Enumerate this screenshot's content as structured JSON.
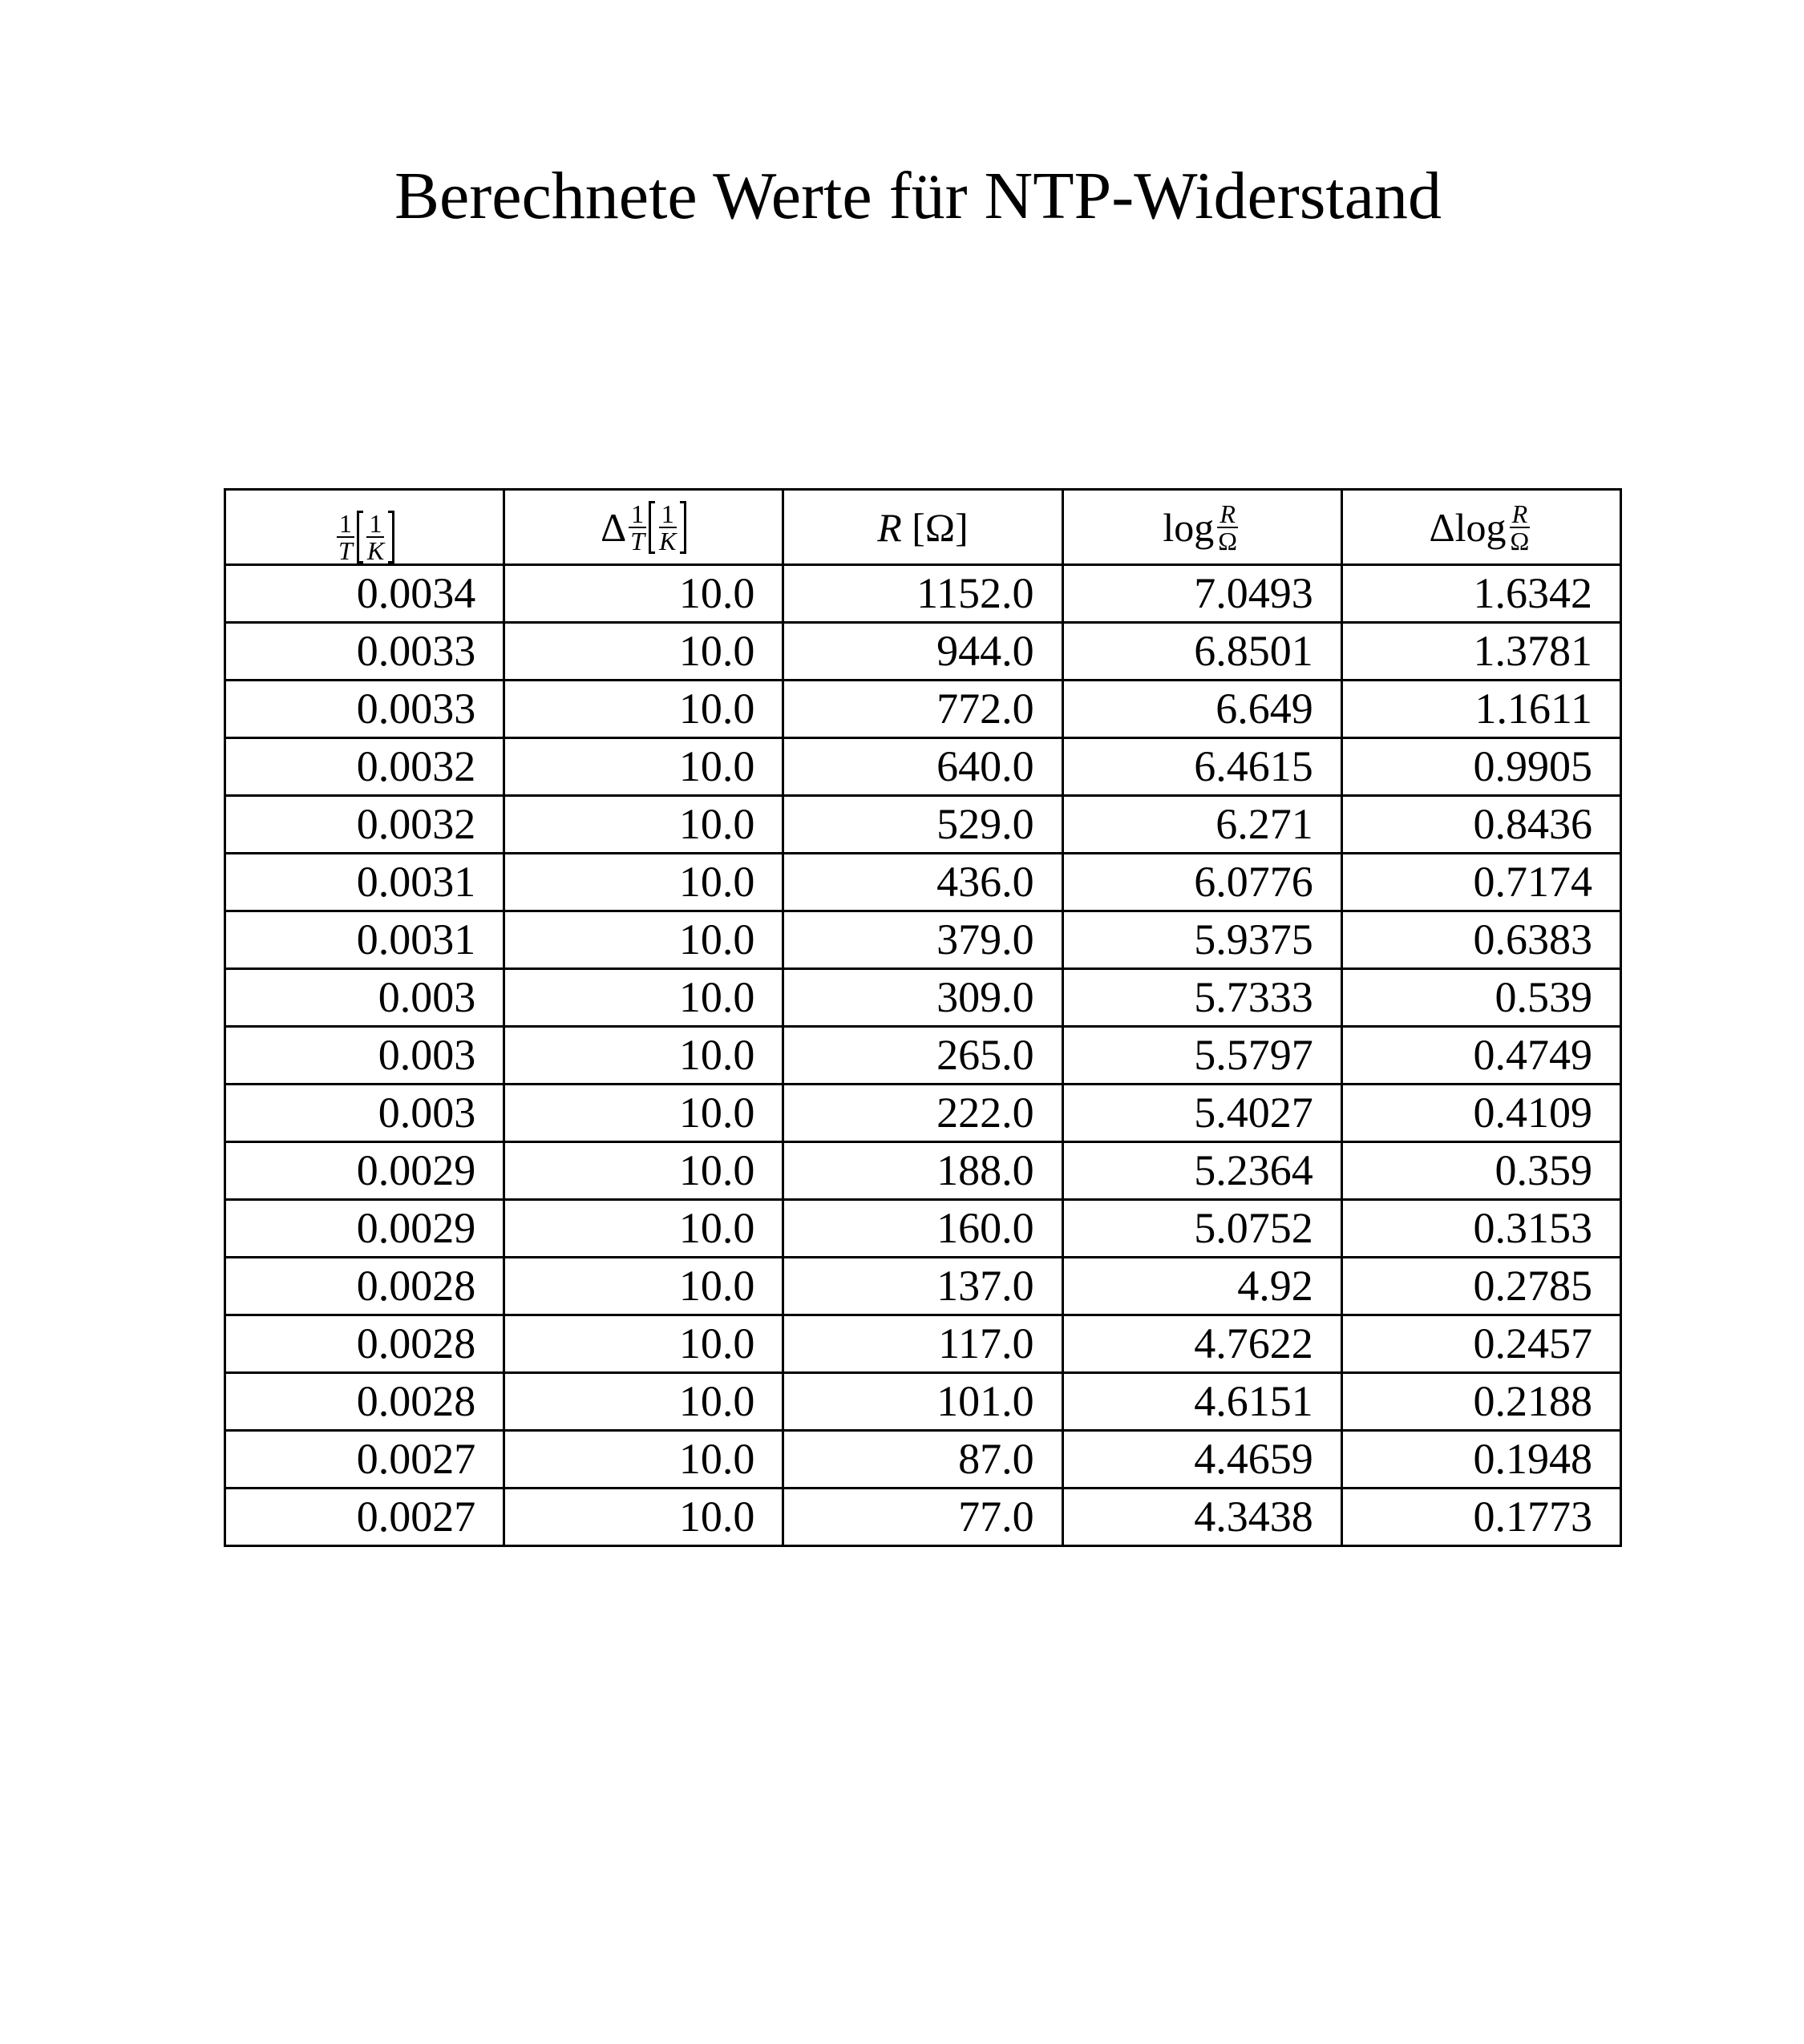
{
  "title": "Berechnete Werte für NTP-Widerstand",
  "table": {
    "headers": [
      {
        "prefix": "",
        "frac_num": "1",
        "frac_den": "T",
        "unit_num": "1",
        "unit_den": "K"
      },
      {
        "prefix": "Δ",
        "frac_num": "1",
        "frac_den": "T",
        "unit_num": "1",
        "unit_den": "K"
      },
      {
        "var": "R",
        "unit": "[Ω]"
      },
      {
        "prefix": "log",
        "frac_num": "R",
        "frac_den": "Ω"
      },
      {
        "prefix": "Δlog",
        "frac_num": "R",
        "frac_den": "Ω"
      }
    ],
    "rows": [
      [
        "0.0034",
        "10.0",
        "1152.0",
        "7.0493",
        "1.6342"
      ],
      [
        "0.0033",
        "10.0",
        "944.0",
        "6.8501",
        "1.3781"
      ],
      [
        "0.0033",
        "10.0",
        "772.0",
        "6.649",
        "1.1611"
      ],
      [
        "0.0032",
        "10.0",
        "640.0",
        "6.4615",
        "0.9905"
      ],
      [
        "0.0032",
        "10.0",
        "529.0",
        "6.271",
        "0.8436"
      ],
      [
        "0.0031",
        "10.0",
        "436.0",
        "6.0776",
        "0.7174"
      ],
      [
        "0.0031",
        "10.0",
        "379.0",
        "5.9375",
        "0.6383"
      ],
      [
        "0.003",
        "10.0",
        "309.0",
        "5.7333",
        "0.539"
      ],
      [
        "0.003",
        "10.0",
        "265.0",
        "5.5797",
        "0.4749"
      ],
      [
        "0.003",
        "10.0",
        "222.0",
        "5.4027",
        "0.4109"
      ],
      [
        "0.0029",
        "10.0",
        "188.0",
        "5.2364",
        "0.359"
      ],
      [
        "0.0029",
        "10.0",
        "160.0",
        "5.0752",
        "0.3153"
      ],
      [
        "0.0028",
        "10.0",
        "137.0",
        "4.92",
        "0.2785"
      ],
      [
        "0.0028",
        "10.0",
        "117.0",
        "4.7622",
        "0.2457"
      ],
      [
        "0.0028",
        "10.0",
        "101.0",
        "4.6151",
        "0.2188"
      ],
      [
        "0.0027",
        "10.0",
        "87.0",
        "4.4659",
        "0.1948"
      ],
      [
        "0.0027",
        "10.0",
        "77.0",
        "4.3438",
        "0.1773"
      ]
    ]
  }
}
